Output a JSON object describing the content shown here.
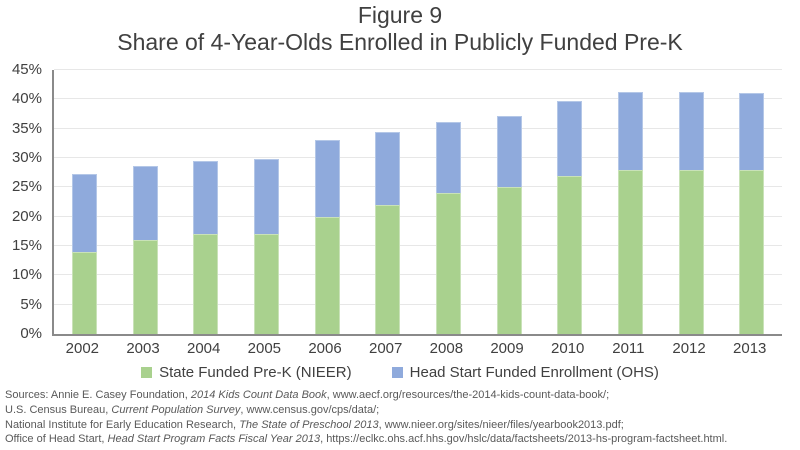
{
  "figure": {
    "title": "Figure 9",
    "subtitle": "Share of 4-Year-Olds Enrolled in Publicly Funded Pre-K"
  },
  "chart_data": {
    "type": "bar",
    "stacked": true,
    "title": "Figure 9",
    "subtitle": "Share of 4-Year-Olds Enrolled in Publicly Funded Pre-K",
    "categories": [
      "2002",
      "2003",
      "2004",
      "2005",
      "2006",
      "2007",
      "2008",
      "2009",
      "2010",
      "2011",
      "2012",
      "2013"
    ],
    "series": [
      {
        "name": "State Funded Pre-K (NIEER)",
        "color": "#A9D18E",
        "border_color": "#C9E2B8",
        "values": [
          14,
          16,
          17,
          17,
          20,
          22,
          24,
          25,
          27,
          28,
          28,
          28
        ]
      },
      {
        "name": "Head Start Funded Enrollment (OHS)",
        "color": "#8FAADC",
        "border_color": "#B4C7E7",
        "values": [
          13.2,
          12.6,
          12.5,
          12.9,
          13.0,
          12.5,
          12.1,
          12.2,
          12.7,
          13.3,
          13.2,
          13.1
        ]
      }
    ],
    "stacked_totals": [
      27.2,
      28.6,
      29.5,
      29.9,
      33.0,
      34.5,
      36.1,
      37.2,
      39.7,
      41.3,
      41.2,
      41.1
    ],
    "xlabel": "",
    "ylabel": "",
    "ylim": [
      0,
      45
    ],
    "ytick_step": 5,
    "ytick_labels": [
      "0%",
      "5%",
      "10%",
      "15%",
      "20%",
      "25%",
      "30%",
      "35%",
      "40%",
      "45%"
    ],
    "grid": true,
    "legend_position": "bottom"
  },
  "colors": {
    "state_green": "#A9D18E",
    "state_green_border": "#C9E2B8",
    "headstart_blue": "#8FAADC",
    "headstart_blue_border": "#B4C7E7",
    "gridline": "#E7E7E7",
    "axis_line": "#8A8A8A",
    "text": "#404040",
    "source_text": "#595959"
  },
  "sources": {
    "lines": [
      {
        "pre": "Sources: Annie E. Casey Foundation, ",
        "italic": "2014 Kids Count Data Book",
        "post": ", www.aecf.org/resources/the-2014-kids-count-data-book/;"
      },
      {
        "pre": "U.S. Census Bureau, ",
        "italic": "Current Population Survey",
        "post": ", www.census.gov/cps/data/;"
      },
      {
        "pre": "National Institute for Early Education Research, ",
        "italic": "The State of Preschool 2013",
        "post": ", www.nieer.org/sites/nieer/files/yearbook2013.pdf;"
      },
      {
        "pre": "Office of Head Start, ",
        "italic": "Head Start Program Facts Fiscal Year 2013",
        "post": ", https://eclkc.ohs.acf.hhs.gov/hslc/data/factsheets/2013-hs-program-factsheet.html."
      }
    ]
  }
}
